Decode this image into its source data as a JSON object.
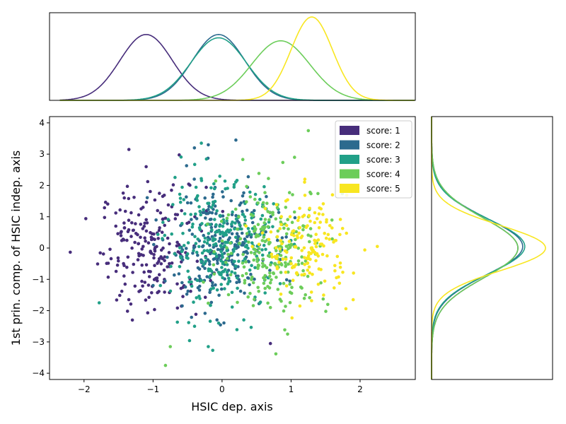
{
  "chart_data": [
    {
      "type": "scatter",
      "xlabel": "HSIC dep. axis",
      "ylabel": "1st prin. comp. of HSIC indep. axis",
      "xlim": [
        -2.5,
        2.8
      ],
      "ylim": [
        -4.2,
        4.2
      ],
      "xticks": [
        -2,
        -1,
        0,
        1,
        2
      ],
      "yticks": [
        -4,
        -3,
        -2,
        -1,
        0,
        1,
        2,
        3,
        4
      ],
      "xtick_labels": [
        "−2",
        "−1",
        "0",
        "1",
        "2"
      ],
      "ytick_labels": [
        "−4",
        "−3",
        "−2",
        "−1",
        "0",
        "1",
        "2",
        "3",
        "4"
      ],
      "grid": false,
      "legend": {
        "position": "top-right",
        "entries": [
          {
            "label": "score: 1",
            "color": "#472d7b"
          },
          {
            "label": "score: 2",
            "color": "#2c6a8e"
          },
          {
            "label": "score: 3",
            "color": "#21a088"
          },
          {
            "label": "score: 4",
            "color": "#6ccd5a"
          },
          {
            "label": "score: 5",
            "color": "#f8e621"
          }
        ]
      },
      "series": [
        {
          "name": "score: 1",
          "color": "#472d7b",
          "x_mean": -1.0,
          "x_sd": 0.38,
          "y_mean": 0.0,
          "y_sd": 1.0,
          "count": 220,
          "notable_points": [
            [
              -1.35,
              3.15
            ],
            [
              -1.1,
              2.6
            ],
            [
              0.7,
              -3.05
            ],
            [
              -1.3,
              -2.3
            ]
          ]
        },
        {
          "name": "score: 2",
          "color": "#2c6a8e",
          "x_mean": -0.05,
          "x_sd": 0.38,
          "y_mean": 0.05,
          "y_sd": 0.95,
          "count": 260,
          "notable_points": [
            [
              -0.4,
              3.2
            ],
            [
              0.2,
              3.45
            ],
            [
              -0.2,
              3.3
            ]
          ]
        },
        {
          "name": "score: 3",
          "color": "#21a088",
          "x_mean": 0.0,
          "x_sd": 0.4,
          "y_mean": 0.05,
          "y_sd": 1.0,
          "count": 280,
          "notable_points": [
            [
              -1.78,
              -1.75
            ],
            [
              -0.2,
              -3.15
            ],
            [
              -0.3,
              3.35
            ]
          ]
        },
        {
          "name": "score: 4",
          "color": "#6ccd5a",
          "x_mean": 0.75,
          "x_sd": 0.4,
          "y_mean": 0.0,
          "y_sd": 1.0,
          "count": 240,
          "notable_points": [
            [
              -0.82,
              -3.75
            ],
            [
              -0.75,
              -3.15
            ],
            [
              1.25,
              3.75
            ],
            [
              1.05,
              2.9
            ],
            [
              0.95,
              -2.75
            ]
          ]
        },
        {
          "name": "score: 5",
          "color": "#f8e621",
          "x_mean": 1.25,
          "x_sd": 0.3,
          "y_mean": 0.0,
          "y_sd": 0.8,
          "count": 160,
          "notable_points": [
            [
              2.25,
              0.05
            ],
            [
              1.6,
              1.7
            ],
            [
              1.9,
              -1.65
            ],
            [
              1.2,
              2.2
            ]
          ]
        }
      ]
    },
    {
      "type": "line",
      "description_type": "density",
      "xlim": [
        -2.5,
        2.8
      ],
      "series": [
        {
          "name": "score: 1",
          "color": "#472d7b",
          "components": [
            [
              1.0,
              -1.1,
              0.38
            ]
          ]
        },
        {
          "name": "score: 2",
          "color": "#2c6a8e",
          "components": [
            [
              1.0,
              -0.05,
              0.38
            ]
          ]
        },
        {
          "name": "score: 3",
          "color": "#21a088",
          "components": [
            [
              1.0,
              -0.05,
              0.4
            ]
          ]
        },
        {
          "name": "score: 4",
          "color": "#6ccd5a",
          "components": [
            [
              1.0,
              0.85,
              0.42
            ]
          ]
        },
        {
          "name": "score: 5",
          "color": "#f8e621",
          "components": [
            [
              1.0,
              1.3,
              0.3
            ]
          ]
        }
      ]
    },
    {
      "type": "line",
      "description_type": "density",
      "ylim": [
        -4.2,
        4.2
      ],
      "series": [
        {
          "name": "score: 1",
          "color": "#472d7b",
          "components": [
            [
              1.0,
              0.0,
              0.95
            ]
          ]
        },
        {
          "name": "score: 2",
          "color": "#2c6a8e",
          "components": [
            [
              1.0,
              0.05,
              0.9
            ]
          ]
        },
        {
          "name": "score: 3",
          "color": "#21a088",
          "components": [
            [
              1.0,
              0.05,
              0.88
            ]
          ]
        },
        {
          "name": "score: 4",
          "color": "#6ccd5a",
          "components": [
            [
              1.0,
              0.0,
              0.95
            ]
          ]
        },
        {
          "name": "score: 5",
          "color": "#f8e621",
          "components": [
            [
              1.0,
              0.0,
              0.72
            ]
          ]
        }
      ]
    }
  ]
}
